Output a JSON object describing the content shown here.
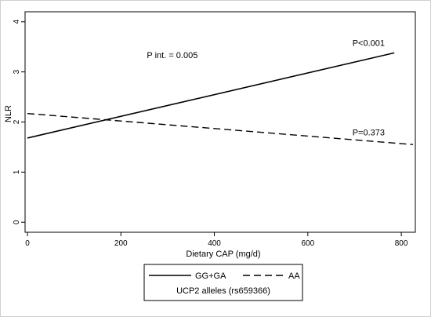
{
  "chart_data": {
    "type": "line",
    "title": "",
    "xlabel": "Dietary CAP (mg/d)",
    "ylabel": "NLR",
    "xlim": [
      -5,
      830
    ],
    "ylim": [
      -0.2,
      4.2
    ],
    "xticks": [
      0,
      200,
      400,
      600,
      800
    ],
    "yticks": [
      0,
      1,
      2,
      3,
      4
    ],
    "grid": false,
    "series": [
      {
        "name": "GG+GA",
        "style": "solid",
        "x": [
          0,
          785
        ],
        "y": [
          1.68,
          3.38
        ]
      },
      {
        "name": "AA",
        "style": "dashed",
        "x": [
          0,
          825
        ],
        "y": [
          2.17,
          1.55
        ]
      }
    ],
    "annotations": [
      {
        "text": "P int. = 0.005",
        "x": 310,
        "y": 3.28
      },
      {
        "text": "P<0.001",
        "x": 730,
        "y": 3.52
      },
      {
        "text": "P=0.373",
        "x": 730,
        "y": 1.73
      }
    ],
    "legend": {
      "placement": "bottom",
      "title": "UCP2 alleles (rs659366)",
      "entries": [
        "GG+GA",
        "AA"
      ]
    },
    "colors": {
      "line": "#000000",
      "plot_background": "#ffffff",
      "outer_background": "#ffffff"
    }
  }
}
